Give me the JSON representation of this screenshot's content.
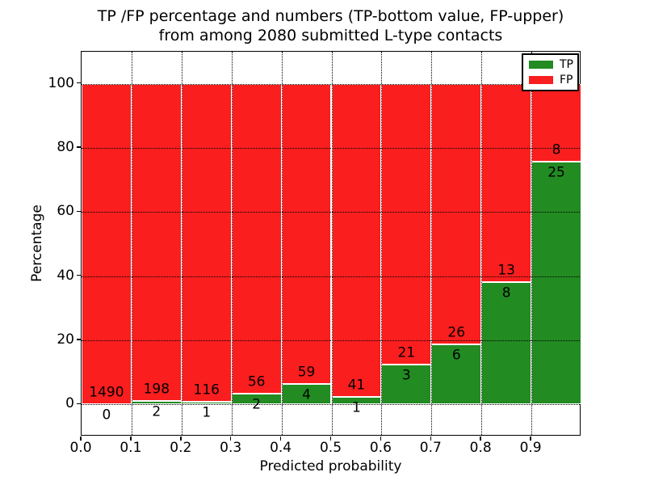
{
  "chart_data": {
    "type": "bar",
    "stacked": true,
    "values_are": "percent of contacts per bin (TP bottom, FP top, total 100%)",
    "title_lines": [
      "TP /FP percentage and numbers (TP-bottom value, FP-upper)",
      "from among 2080 submitted L-type contacts"
    ],
    "total_contacts": 2080,
    "xlabel": "Predicted probability",
    "ylabel": "Percentage",
    "x_bin_edges": [
      0.0,
      0.1,
      0.2,
      0.3,
      0.4,
      0.5,
      0.6,
      0.7,
      0.8,
      0.9,
      1.0
    ],
    "x_tick_labels": [
      "0.0",
      "0.1",
      "0.2",
      "0.3",
      "0.4",
      "0.5",
      "0.6",
      "0.7",
      "0.8",
      "0.9"
    ],
    "y_ticks": [
      0,
      20,
      40,
      60,
      80,
      100
    ],
    "ylim": [
      -10,
      110
    ],
    "xlim": [
      0.0,
      1.0
    ],
    "grid": "dotted both axes",
    "legend": {
      "position": "upper right",
      "entries": [
        {
          "label": "TP",
          "color": "#228b22"
        },
        {
          "label": "FP",
          "color": "#fa1e1e"
        }
      ]
    },
    "series": [
      {
        "name": "TP",
        "color": "#228b22",
        "counts": [
          0,
          2,
          1,
          2,
          4,
          1,
          3,
          6,
          8,
          25
        ],
        "percent": [
          0.0,
          1.0,
          0.85,
          3.45,
          6.35,
          2.38,
          12.5,
          18.75,
          38.1,
          75.76
        ]
      },
      {
        "name": "FP",
        "color": "#fa1e1e",
        "counts": [
          1490,
          198,
          116,
          56,
          59,
          41,
          21,
          26,
          13,
          8
        ],
        "percent": [
          100.0,
          99.0,
          99.15,
          96.55,
          93.65,
          97.62,
          87.5,
          81.25,
          61.9,
          24.24
        ]
      }
    ],
    "bar_edge_color": "#ffffff"
  }
}
